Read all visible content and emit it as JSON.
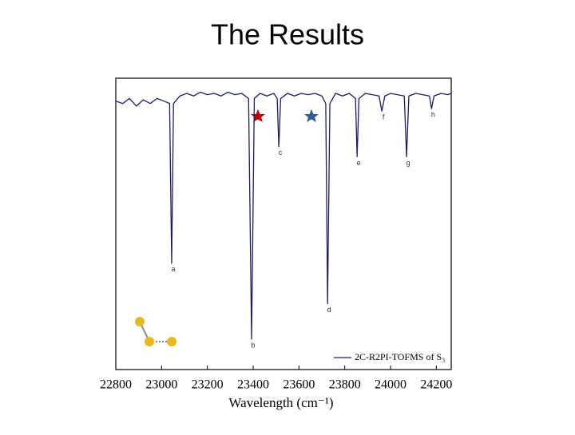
{
  "title": "The Results",
  "chart_data": {
    "type": "line",
    "xlabel": "Wavelength (cm⁻¹)",
    "xlim": [
      22800,
      24265
    ],
    "ylim": [
      -1.05,
      0.1
    ],
    "xticks": [
      22800,
      23000,
      23200,
      23400,
      23600,
      23800,
      24000,
      24200
    ],
    "x": [
      22800,
      22830,
      22860,
      22890,
      22920,
      22950,
      22980,
      23010,
      23035,
      23044,
      23052,
      23080,
      23110,
      23140,
      23170,
      23200,
      23230,
      23260,
      23290,
      23320,
      23350,
      23380,
      23393,
      23405,
      23430,
      23460,
      23490,
      23505,
      23512,
      23520,
      23550,
      23580,
      23610,
      23640,
      23670,
      23700,
      23717,
      23725,
      23735,
      23760,
      23790,
      23820,
      23847,
      23854,
      23862,
      23890,
      23920,
      23950,
      23962,
      23975,
      24000,
      24030,
      24060,
      24070,
      24080,
      24110,
      24140,
      24170,
      24179,
      24190,
      24220,
      24250,
      24265
    ],
    "series": [
      {
        "name": "2C-R2PI-TOFMS of S₃",
        "color": "#1c1c6e",
        "values": [
          0.01,
          0,
          0.02,
          -0.01,
          0.015,
          0,
          0.02,
          0.01,
          0,
          -0.63,
          0,
          0.03,
          0.04,
          0.03,
          0.045,
          0.035,
          0.04,
          0.03,
          0.045,
          0.035,
          0.04,
          0.02,
          -0.93,
          0.02,
          0.04,
          0.03,
          0.04,
          0.02,
          -0.17,
          0.02,
          0.04,
          0.03,
          0.04,
          0.035,
          0.04,
          0.03,
          0,
          -0.79,
          0,
          0.04,
          0.03,
          0.04,
          0.02,
          -0.21,
          0.02,
          0.04,
          0.035,
          0.03,
          -0.03,
          0.03,
          0.04,
          0.035,
          0.03,
          -0.21,
          0.03,
          0.04,
          0.035,
          0.03,
          -0.02,
          0.03,
          0.04,
          0.035,
          0.04
        ]
      }
    ],
    "annotations": [
      {
        "text": "a",
        "x": 23044
      },
      {
        "text": "b",
        "x": 23393
      },
      {
        "text": "c",
        "x": 23512
      },
      {
        "text": "d",
        "x": 23725
      },
      {
        "text": "e",
        "x": 23854
      },
      {
        "text": "f",
        "x": 23962
      },
      {
        "text": "g",
        "x": 24070
      },
      {
        "text": "h",
        "x": 24179
      }
    ]
  }
}
